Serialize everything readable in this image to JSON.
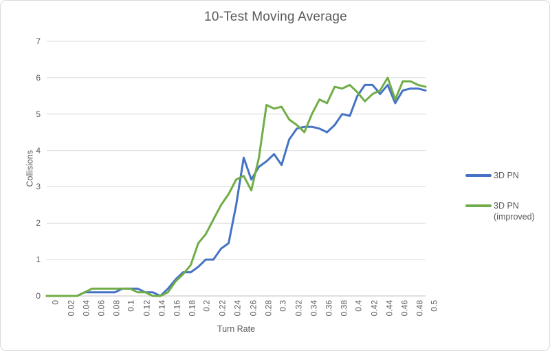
{
  "chart_data": {
    "type": "line",
    "title": "10-Test Moving Average",
    "xlabel": "Turn Rate",
    "ylabel": "Collisions",
    "xlim": [
      0,
      0.5
    ],
    "ylim": [
      0,
      7
    ],
    "grid": "horizontal",
    "legend_position": "right",
    "x_tick_labels": [
      "0",
      "0.02",
      "0.04",
      "0.06",
      "0.08",
      "0.1",
      "0.12",
      "0.14",
      "0.16",
      "0.18",
      "0.2",
      "0.22",
      "0.24",
      "0.26",
      "0.28",
      "0.3",
      "0.32",
      "0.34",
      "0.36",
      "0.38",
      "0.4",
      "0.42",
      "0.44",
      "0.46",
      "0.48",
      "0.5"
    ],
    "y_tick_labels": [
      "0",
      "1",
      "2",
      "3",
      "4",
      "5",
      "6",
      "7"
    ],
    "x": [
      0,
      0.01,
      0.02,
      0.03,
      0.04,
      0.05,
      0.06,
      0.07,
      0.08,
      0.09,
      0.1,
      0.11,
      0.12,
      0.13,
      0.14,
      0.15,
      0.16,
      0.17,
      0.18,
      0.19,
      0.2,
      0.21,
      0.22,
      0.23,
      0.24,
      0.25,
      0.26,
      0.27,
      0.28,
      0.29,
      0.3,
      0.31,
      0.32,
      0.33,
      0.34,
      0.35,
      0.36,
      0.37,
      0.38,
      0.39,
      0.4,
      0.41,
      0.42,
      0.43,
      0.44,
      0.45,
      0.46,
      0.47,
      0.48,
      0.49,
      0.5
    ],
    "series": [
      {
        "name": "3D PN",
        "color": "#4472C4",
        "values": [
          0,
          0,
          0,
          0,
          0,
          0.1,
          0.1,
          0.1,
          0.1,
          0.1,
          0.2,
          0.2,
          0.2,
          0.1,
          0.1,
          0,
          0.2,
          0.45,
          0.65,
          0.65,
          0.8,
          1.0,
          1.0,
          1.3,
          1.45,
          2.5,
          3.8,
          3.2,
          3.55,
          3.7,
          3.9,
          3.6,
          4.3,
          4.6,
          4.65,
          4.65,
          4.6,
          4.5,
          4.7,
          5.0,
          4.95,
          5.5,
          5.8,
          5.8,
          5.55,
          5.8,
          5.3,
          5.65,
          5.7,
          5.7,
          5.65
        ]
      },
      {
        "name": "3D PN (improved)",
        "color": "#70AD47",
        "values": [
          0,
          0,
          0,
          0,
          0,
          0.1,
          0.2,
          0.2,
          0.2,
          0.2,
          0.2,
          0.2,
          0.1,
          0.1,
          0,
          0,
          0.1,
          0.4,
          0.6,
          0.85,
          1.45,
          1.7,
          2.1,
          2.5,
          2.8,
          3.2,
          3.3,
          2.9,
          3.8,
          5.25,
          5.15,
          5.2,
          4.85,
          4.7,
          4.5,
          5.0,
          5.4,
          5.3,
          5.75,
          5.7,
          5.8,
          5.6,
          5.35,
          5.55,
          5.65,
          6.0,
          5.4,
          5.9,
          5.9,
          5.8,
          5.75
        ]
      }
    ]
  },
  "legend": [
    {
      "lines": [
        "3D PN"
      ],
      "color": "#4472C4"
    },
    {
      "lines": [
        "3D PN",
        "(improved)"
      ],
      "color": "#70AD47"
    }
  ],
  "colors": {
    "series_blue": "#4472C4",
    "series_green": "#70AD47",
    "text": "#595959",
    "gridline": "#D9D9D9",
    "axis_line": "#BFBFBF",
    "border": "#D9D9D9",
    "background": "#FFFFFF"
  }
}
